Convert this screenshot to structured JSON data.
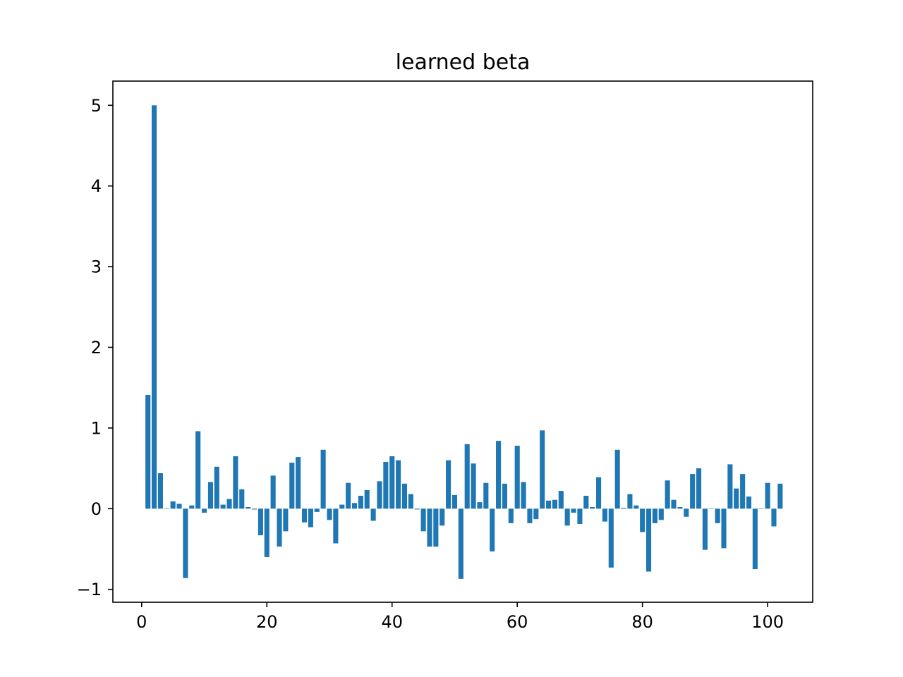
{
  "chart_data": {
    "type": "bar",
    "title": "learned beta",
    "xlabel": "",
    "ylabel": "",
    "xlim": [
      -4.6,
      107.2
    ],
    "ylim": [
      -1.16,
      5.3
    ],
    "xticks": [
      0,
      20,
      40,
      60,
      80,
      100
    ],
    "xtick_labels": [
      "0",
      "20",
      "40",
      "60",
      "80",
      "100"
    ],
    "yticks": [
      -1,
      0,
      1,
      2,
      3,
      4,
      5
    ],
    "ytick_labels": [
      "−1",
      "0",
      "1",
      "2",
      "3",
      "4",
      "5"
    ],
    "grid": false,
    "bar_color": "#1f77b4",
    "bar_width": 0.8,
    "x": [
      1,
      2,
      3,
      4,
      5,
      6,
      7,
      8,
      9,
      10,
      11,
      12,
      13,
      14,
      15,
      16,
      17,
      18,
      19,
      20,
      21,
      22,
      23,
      24,
      25,
      26,
      27,
      28,
      29,
      30,
      31,
      32,
      33,
      34,
      35,
      36,
      37,
      38,
      39,
      40,
      41,
      42,
      43,
      44,
      45,
      46,
      47,
      48,
      49,
      50,
      51,
      52,
      53,
      54,
      55,
      56,
      57,
      58,
      59,
      60,
      61,
      62,
      63,
      64,
      65,
      66,
      67,
      68,
      69,
      70,
      71,
      72,
      73,
      74,
      75,
      76,
      77,
      78,
      79,
      80,
      81,
      82,
      83,
      84,
      85,
      86,
      87,
      88,
      89,
      90,
      91,
      92,
      93,
      94,
      95,
      96,
      97,
      98,
      99,
      100,
      101,
      102
    ],
    "values": [
      1.41,
      5.0,
      0.44,
      0.0,
      0.09,
      0.06,
      -0.86,
      0.04,
      0.96,
      -0.05,
      0.33,
      0.52,
      0.05,
      0.12,
      0.65,
      0.24,
      0.02,
      -0.01,
      -0.33,
      -0.6,
      0.41,
      -0.47,
      -0.28,
      0.57,
      0.64,
      -0.17,
      -0.23,
      -0.04,
      0.73,
      -0.14,
      -0.43,
      0.05,
      0.32,
      0.07,
      0.16,
      0.23,
      -0.15,
      0.34,
      0.58,
      0.65,
      0.6,
      0.31,
      0.18,
      -0.01,
      -0.28,
      -0.47,
      -0.47,
      -0.21,
      0.6,
      0.17,
      -0.87,
      0.8,
      0.56,
      0.08,
      0.32,
      -0.53,
      0.84,
      0.31,
      -0.18,
      0.78,
      0.33,
      -0.18,
      -0.13,
      0.97,
      0.1,
      0.11,
      0.22,
      -0.21,
      -0.05,
      -0.19,
      0.16,
      0.02,
      0.39,
      -0.16,
      -0.73,
      0.73,
      0.01,
      0.18,
      0.04,
      -0.29,
      -0.78,
      -0.18,
      -0.14,
      0.35,
      0.11,
      0.02,
      -0.1,
      0.43,
      0.5,
      -0.51,
      0.0,
      -0.18,
      -0.49,
      0.55,
      0.25,
      0.43,
      0.15,
      -0.75,
      0.0,
      0.32,
      -0.22,
      0.31
    ]
  }
}
